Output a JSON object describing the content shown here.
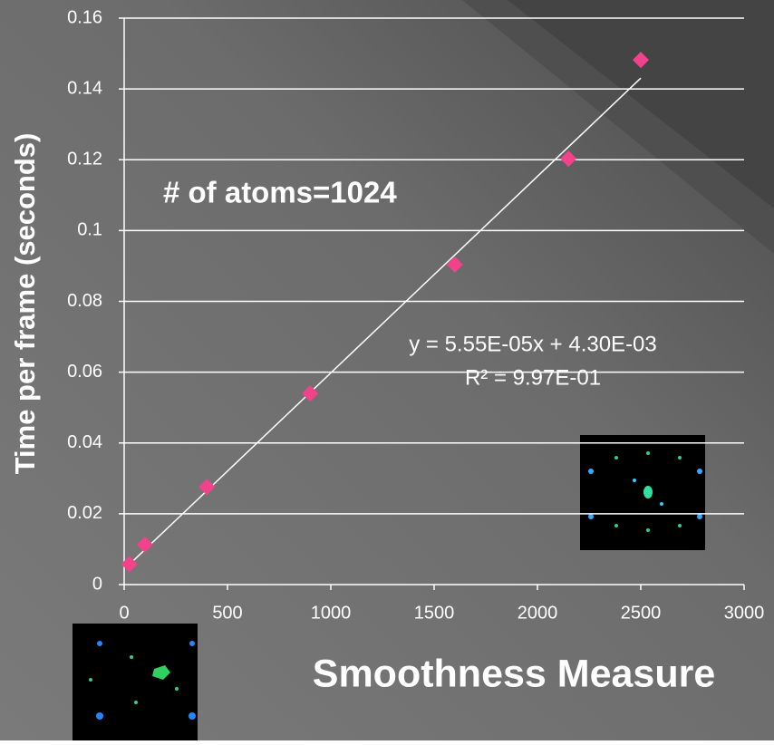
{
  "chart_data": {
    "type": "scatter",
    "y_label": "Time per frame (seconds)",
    "x_label": "Smoothness Measure",
    "annotation": "# of atoms=1024",
    "series": [
      {
        "color": "#f2428c",
        "x": [
          25,
          100,
          400,
          900,
          1600,
          2150,
          2500
        ],
        "values": [
          0.0058,
          0.0113,
          0.0276,
          0.054,
          0.0904,
          0.1203,
          0.1482
        ]
      }
    ],
    "trendline": {
      "slope": 5.55e-05,
      "intercept": 0.0043,
      "color": "#ffffff",
      "label": "y = 5.55E-05x + 4.30E-03",
      "r2_label": "R² = 9.97E-01"
    },
    "xlim": [
      0,
      3000
    ],
    "xticks": [
      0,
      500,
      1000,
      1500,
      2000,
      2500,
      3000
    ],
    "ylim": [
      0,
      0.16
    ],
    "yticks": [
      0,
      0.02,
      0.04,
      0.06,
      0.08,
      0.1,
      0.12,
      0.14,
      0.16
    ],
    "grid": true
  }
}
